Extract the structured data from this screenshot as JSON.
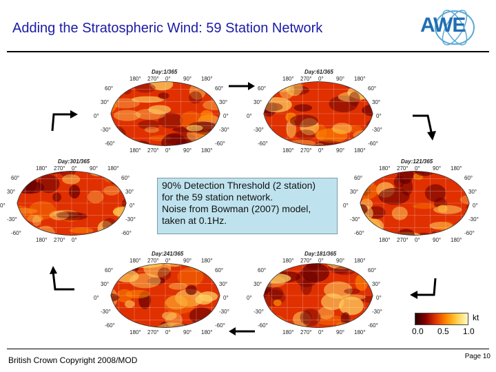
{
  "slide": {
    "title": "Adding the Stratospheric Wind: 59 Station Network",
    "logo_text": "AWE",
    "footer_left": "British Crown Copyright 2008/MOD",
    "page_label": "Page 10"
  },
  "info_box": {
    "lines": [
      "90% Detection Threshold (2 station)",
      "for the 59 station network.",
      "Noise from Bowman (2007) model,",
      "taken at 0.1Hz."
    ]
  },
  "maps": [
    {
      "day": "Day:1/365",
      "lon_ticks_top": [
        "180°",
        "270°",
        "0°",
        "90°",
        "180°"
      ],
      "lon_ticks_bottom": [
        "180°",
        "270°",
        "0°",
        "90°",
        "180°"
      ],
      "lat_ticks_left": [
        "60°",
        "30°",
        "0°",
        "-30°",
        "-60°"
      ],
      "lat_ticks_right": [
        "60°",
        "30°",
        "0°",
        "-30°",
        "-60°"
      ]
    },
    {
      "day": "Day:61/365",
      "lon_ticks_top": [
        "180°",
        "270°",
        "0°",
        "90°",
        "180°"
      ],
      "lon_ticks_bottom": [
        "180°",
        "270°",
        "0°",
        "90°",
        "180°"
      ],
      "lat_ticks_left": [
        "60°",
        "30°",
        "0°",
        "-30°",
        "-60°"
      ],
      "lat_ticks_right": [
        "60°",
        "30°",
        "0°",
        "-30°",
        "-60°"
      ]
    },
    {
      "day": "Day:121/365",
      "lon_ticks_top": [
        "180°",
        "270°",
        "0°",
        "90°",
        "180°"
      ],
      "lon_ticks_bottom": [
        "180°",
        "270°",
        "0°",
        "90°",
        "180°"
      ],
      "lat_ticks_left": [
        "60°",
        "30°",
        "0°",
        "-30°",
        "-60°"
      ],
      "lat_ticks_right": [
        "60°",
        "30°",
        "0°",
        "-30°",
        "-60°"
      ]
    },
    {
      "day": "Day:181/365",
      "lon_ticks_top": [
        "180°",
        "270°",
        "0°",
        "90°",
        "180°"
      ],
      "lon_ticks_bottom": [
        "180°",
        "270°",
        "0°",
        "90°",
        "180°"
      ],
      "lat_ticks_left": [
        "60°",
        "30°",
        "0°",
        "-30°",
        "-60°"
      ],
      "lat_ticks_right": [
        "60°",
        "30°",
        "0°",
        "-30°",
        "-60°"
      ]
    },
    {
      "day": "Day:241/365",
      "lon_ticks_top": [
        "180°",
        "270°",
        "0°",
        "90°",
        "180°"
      ],
      "lon_ticks_bottom": [
        "180°",
        "270°",
        "0°",
        "90°",
        "180°"
      ],
      "lat_ticks_left": [
        "60°",
        "30°",
        "0°",
        "-30°",
        "-60°"
      ],
      "lat_ticks_right": [
        "60°",
        "30°",
        "0°",
        "-30°",
        "-60°"
      ]
    },
    {
      "day": "Day:301/365",
      "lon_ticks_top": [
        "180°",
        "270°",
        "0°",
        "90°",
        "180°"
      ],
      "lon_ticks_bottom": [
        "180°",
        "270°",
        "0°"
      ],
      "lat_ticks_left": [
        "60°",
        "30°",
        "0°",
        "-30°",
        "-60°"
      ],
      "lat_ticks_right": [
        "60°",
        "30°",
        "0°",
        "-30°",
        "-60°"
      ]
    }
  ],
  "colorbar": {
    "unit": "kt",
    "ticks": [
      "0.0",
      "0.5",
      "1.0"
    ],
    "colors": [
      "#2a0000",
      "#8a0000",
      "#e23a00",
      "#ff8c00",
      "#ffd24a",
      "#fff6c8"
    ]
  },
  "colors": {
    "title": "#1a1aa6",
    "info_box_bg": "#bfe3ee",
    "map_dark": "#6a0000",
    "map_mid": "#e03000",
    "map_light": "#ffd060"
  }
}
